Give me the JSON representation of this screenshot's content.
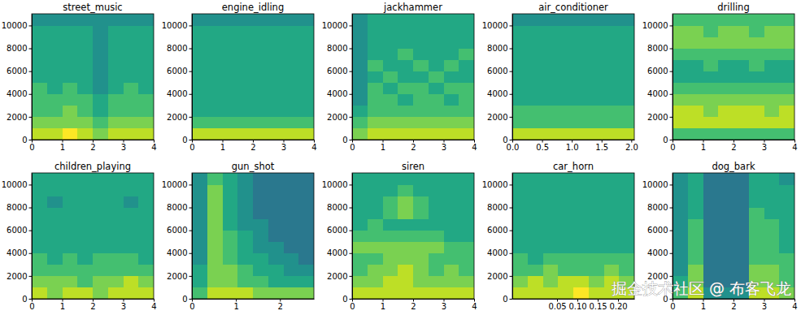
{
  "chart_data": [
    {
      "type": "heatmap",
      "title": "street_music",
      "xlim": [
        0,
        4
      ],
      "xticks": [
        0,
        1,
        2,
        3,
        4
      ],
      "ylim": [
        0,
        11025
      ],
      "yticks": [
        0,
        2000,
        4000,
        6000,
        8000,
        10000
      ],
      "zlim": [
        0,
        10
      ],
      "cells": [
        [
          9,
          9,
          10,
          9,
          8,
          9,
          9,
          9
        ],
        [
          8,
          8,
          8,
          8,
          7,
          8,
          8,
          8
        ],
        [
          7,
          7,
          8,
          7,
          6,
          7,
          7,
          7
        ],
        [
          7,
          7,
          7,
          7,
          6,
          7,
          7,
          7
        ],
        [
          7,
          6,
          7,
          6,
          5,
          6,
          7,
          6
        ],
        [
          6,
          6,
          6,
          6,
          5,
          6,
          6,
          6
        ],
        [
          6,
          6,
          6,
          6,
          5,
          6,
          6,
          6
        ],
        [
          6,
          6,
          6,
          6,
          5,
          6,
          6,
          6
        ],
        [
          6,
          6,
          6,
          6,
          5,
          6,
          6,
          6
        ],
        [
          6,
          6,
          6,
          6,
          5,
          6,
          6,
          6
        ],
        [
          5,
          5,
          5,
          5,
          5,
          5,
          5,
          5
        ]
      ]
    },
    {
      "type": "heatmap",
      "title": "engine_idling",
      "xlim": [
        0,
        4
      ],
      "xticks": [
        0,
        1,
        2,
        3,
        4
      ],
      "ylim": [
        0,
        11025
      ],
      "yticks": [
        0,
        2000,
        4000,
        6000,
        8000,
        10000
      ],
      "zlim": [
        0,
        10
      ],
      "cells": [
        [
          9,
          9,
          9,
          9,
          9,
          9,
          9,
          9
        ],
        [
          7,
          7,
          7,
          7,
          7,
          7,
          7,
          7
        ],
        [
          6,
          6,
          6,
          6,
          6,
          6,
          6,
          6
        ],
        [
          6,
          6,
          6,
          6,
          6,
          6,
          6,
          6
        ],
        [
          6,
          6,
          6,
          6,
          6,
          6,
          6,
          6
        ],
        [
          6,
          6,
          6,
          6,
          6,
          6,
          6,
          6
        ],
        [
          6,
          6,
          6,
          6,
          6,
          6,
          6,
          6
        ],
        [
          6,
          6,
          6,
          6,
          6,
          6,
          6,
          6
        ],
        [
          6,
          6,
          6,
          6,
          6,
          6,
          6,
          6
        ],
        [
          6,
          6,
          6,
          6,
          6,
          6,
          6,
          6
        ],
        [
          5,
          5,
          5,
          5,
          5,
          5,
          5,
          5
        ]
      ]
    },
    {
      "type": "heatmap",
      "title": "jackhammer",
      "xlim": [
        0,
        4
      ],
      "xticks": [
        0,
        1,
        2,
        3,
        4
      ],
      "ylim": [
        0,
        11025
      ],
      "yticks": [
        0,
        2000,
        4000,
        6000,
        8000,
        10000
      ],
      "zlim": [
        0,
        10
      ],
      "cells": [
        [
          8,
          9,
          9,
          9,
          9,
          9,
          9,
          9
        ],
        [
          7,
          8,
          8,
          8,
          8,
          8,
          8,
          8
        ],
        [
          6,
          7,
          7,
          7,
          7,
          7,
          7,
          7
        ],
        [
          5,
          7,
          7,
          6,
          7,
          7,
          6,
          7
        ],
        [
          5,
          7,
          6,
          7,
          7,
          6,
          7,
          7
        ],
        [
          5,
          6,
          7,
          6,
          6,
          7,
          6,
          6
        ],
        [
          5,
          7,
          6,
          6,
          7,
          6,
          7,
          6
        ],
        [
          5,
          6,
          6,
          7,
          6,
          6,
          6,
          7
        ],
        [
          5,
          6,
          6,
          6,
          6,
          6,
          6,
          6
        ],
        [
          5,
          6,
          6,
          6,
          6,
          6,
          6,
          6
        ],
        [
          5,
          6,
          6,
          6,
          6,
          6,
          6,
          6
        ]
      ]
    },
    {
      "type": "heatmap",
      "title": "air_conditioner",
      "xlim": [
        0,
        2.05
      ],
      "xticks": [
        {
          "value": 0,
          "label": "0.0"
        },
        {
          "value": 0.5,
          "label": "0.5"
        },
        {
          "value": 1,
          "label": "1.0"
        },
        {
          "value": 1.5,
          "label": "1.5"
        },
        {
          "value": 2,
          "label": "2.0"
        }
      ],
      "ylim": [
        0,
        11025
      ],
      "yticks": [
        0,
        2000,
        4000,
        6000,
        8000,
        10000
      ],
      "zlim": [
        0,
        10
      ],
      "cells": [
        [
          9,
          9,
          9,
          9,
          9,
          9,
          9,
          9
        ],
        [
          7,
          7,
          7,
          7,
          7,
          7,
          7,
          7
        ],
        [
          7,
          7,
          7,
          7,
          7,
          7,
          7,
          7
        ],
        [
          6,
          6,
          6,
          6,
          6,
          6,
          6,
          6
        ],
        [
          6,
          6,
          6,
          6,
          6,
          6,
          6,
          6
        ],
        [
          6,
          6,
          6,
          6,
          6,
          6,
          6,
          6
        ],
        [
          6,
          6,
          6,
          6,
          6,
          6,
          6,
          6
        ],
        [
          6,
          6,
          6,
          6,
          6,
          6,
          6,
          6
        ],
        [
          6,
          6,
          6,
          6,
          6,
          6,
          6,
          6
        ],
        [
          6,
          6,
          6,
          6,
          6,
          6,
          6,
          6
        ],
        [
          5,
          5,
          5,
          5,
          5,
          5,
          5,
          5
        ]
      ]
    },
    {
      "type": "heatmap",
      "title": "drilling",
      "xlim": [
        0,
        4
      ],
      "xticks": [
        0,
        1,
        2,
        3,
        4
      ],
      "ylim": [
        0,
        11025
      ],
      "yticks": [
        0,
        2000,
        4000,
        6000,
        8000,
        10000
      ],
      "zlim": [
        0,
        10
      ],
      "cells": [
        [
          7,
          7,
          7,
          7,
          7,
          7,
          7,
          7
        ],
        [
          9,
          9,
          9,
          9,
          9,
          9,
          9,
          9
        ],
        [
          9,
          9,
          8,
          9,
          9,
          9,
          8,
          9
        ],
        [
          8,
          8,
          8,
          8,
          8,
          8,
          8,
          8
        ],
        [
          7,
          7,
          7,
          7,
          7,
          7,
          7,
          7
        ],
        [
          6,
          6,
          6,
          6,
          6,
          6,
          6,
          6
        ],
        [
          6,
          6,
          7,
          6,
          6,
          7,
          6,
          6
        ],
        [
          7,
          7,
          7,
          7,
          7,
          7,
          7,
          7
        ],
        [
          8,
          8,
          8,
          8,
          8,
          8,
          8,
          8
        ],
        [
          8,
          8,
          7,
          8,
          8,
          7,
          8,
          8
        ],
        [
          7,
          7,
          7,
          7,
          7,
          7,
          7,
          7
        ]
      ]
    },
    {
      "type": "heatmap",
      "title": "children_playing",
      "xlim": [
        0,
        4
      ],
      "xticks": [
        0,
        1,
        2,
        3,
        4
      ],
      "ylim": [
        0,
        11025
      ],
      "yticks": [
        0,
        2000,
        4000,
        6000,
        8000,
        10000
      ],
      "zlim": [
        0,
        10
      ],
      "cells": [
        [
          9,
          8,
          9,
          9,
          8,
          9,
          9,
          9
        ],
        [
          8,
          8,
          8,
          7,
          8,
          8,
          9,
          8
        ],
        [
          7,
          7,
          7,
          7,
          7,
          7,
          7,
          7
        ],
        [
          7,
          6,
          7,
          6,
          7,
          7,
          7,
          6
        ],
        [
          6,
          6,
          6,
          6,
          6,
          6,
          6,
          6
        ],
        [
          6,
          6,
          6,
          6,
          6,
          6,
          6,
          6
        ],
        [
          6,
          6,
          6,
          6,
          6,
          6,
          6,
          6
        ],
        [
          6,
          6,
          6,
          6,
          6,
          6,
          6,
          6
        ],
        [
          6,
          5,
          6,
          6,
          6,
          6,
          5,
          6
        ],
        [
          6,
          6,
          6,
          6,
          6,
          6,
          6,
          6
        ],
        [
          6,
          6,
          6,
          6,
          6,
          6,
          6,
          6
        ]
      ]
    },
    {
      "type": "heatmap",
      "title": "gun_shot",
      "xlim": [
        0,
        2.77
      ],
      "xticks": [
        0,
        1,
        2
      ],
      "ylim": [
        0,
        11025
      ],
      "yticks": [
        0,
        2000,
        4000,
        6000,
        8000,
        10000
      ],
      "zlim": [
        0,
        10
      ],
      "cells": [
        [
          7,
          9,
          9,
          9,
          8,
          8,
          8,
          8
        ],
        [
          6,
          8,
          8,
          7,
          7,
          6,
          6,
          6
        ],
        [
          6,
          8,
          8,
          7,
          6,
          6,
          5,
          5
        ],
        [
          5,
          8,
          7,
          6,
          6,
          5,
          5,
          4
        ],
        [
          5,
          8,
          7,
          6,
          5,
          5,
          4,
          4
        ],
        [
          5,
          8,
          7,
          6,
          5,
          4,
          4,
          4
        ],
        [
          5,
          8,
          6,
          5,
          5,
          4,
          4,
          4
        ],
        [
          5,
          8,
          6,
          5,
          4,
          4,
          4,
          4
        ],
        [
          5,
          8,
          6,
          5,
          4,
          4,
          4,
          4
        ],
        [
          5,
          8,
          6,
          5,
          4,
          4,
          4,
          4
        ],
        [
          5,
          7,
          6,
          5,
          4,
          4,
          4,
          4
        ]
      ]
    },
    {
      "type": "heatmap",
      "title": "siren",
      "xlim": [
        0,
        4
      ],
      "xticks": [
        0,
        1,
        2,
        3,
        4
      ],
      "ylim": [
        0,
        11025
      ],
      "yticks": [
        0,
        2000,
        4000,
        6000,
        8000,
        10000
      ],
      "zlim": [
        0,
        10
      ],
      "cells": [
        [
          9,
          9,
          9,
          9,
          9,
          9,
          9,
          9
        ],
        [
          8,
          8,
          9,
          9,
          8,
          8,
          8,
          8
        ],
        [
          7,
          8,
          8,
          9,
          8,
          7,
          8,
          7
        ],
        [
          7,
          7,
          8,
          8,
          8,
          7,
          7,
          7
        ],
        [
          8,
          8,
          8,
          8,
          8,
          8,
          7,
          7
        ],
        [
          7,
          7,
          7,
          7,
          7,
          7,
          6,
          6
        ],
        [
          6,
          7,
          6,
          6,
          6,
          6,
          6,
          6
        ],
        [
          6,
          6,
          7,
          8,
          7,
          6,
          6,
          6
        ],
        [
          6,
          6,
          7,
          8,
          7,
          6,
          6,
          6
        ],
        [
          6,
          6,
          6,
          7,
          6,
          6,
          6,
          6
        ],
        [
          6,
          6,
          6,
          6,
          6,
          6,
          6,
          6
        ]
      ]
    },
    {
      "type": "heatmap",
      "title": "car_horn",
      "xlim": [
        -0.06,
        0.24
      ],
      "xticks": [
        {
          "value": 0.05,
          "label": "0.05"
        },
        {
          "value": 0.1,
          "label": "0.10"
        },
        {
          "value": 0.15,
          "label": "0.15"
        },
        {
          "value": 0.2,
          "label": "0.20"
        }
      ],
      "ylim": [
        0,
        11025
      ],
      "yticks": [
        0,
        2000,
        4000,
        6000,
        8000,
        10000
      ],
      "zlim": [
        0,
        10
      ],
      "cells": [
        [
          9,
          9,
          9,
          9,
          10,
          9,
          9,
          9
        ],
        [
          8,
          9,
          8,
          9,
          9,
          8,
          9,
          8
        ],
        [
          7,
          7,
          8,
          7,
          7,
          7,
          8,
          7
        ],
        [
          7,
          6,
          7,
          7,
          7,
          7,
          7,
          7
        ],
        [
          6,
          6,
          6,
          6,
          6,
          6,
          6,
          6
        ],
        [
          6,
          6,
          6,
          6,
          6,
          6,
          6,
          6
        ],
        [
          6,
          6,
          6,
          6,
          6,
          6,
          6,
          6
        ],
        [
          6,
          6,
          6,
          6,
          6,
          6,
          6,
          6
        ],
        [
          6,
          6,
          6,
          6,
          6,
          6,
          6,
          6
        ],
        [
          6,
          6,
          6,
          6,
          6,
          6,
          6,
          6
        ],
        [
          6,
          6,
          6,
          6,
          6,
          6,
          6,
          6
        ]
      ]
    },
    {
      "type": "heatmap",
      "title": "dog_bark",
      "xlim": [
        0,
        4
      ],
      "xticks": [
        0,
        1,
        2,
        3,
        4
      ],
      "ylim": [
        0,
        11025
      ],
      "yticks": [
        0,
        2000,
        4000,
        6000,
        8000,
        10000
      ],
      "zlim": [
        0,
        10
      ],
      "cells": [
        [
          7,
          9,
          5,
          5,
          5,
          9,
          9,
          8
        ],
        [
          6,
          8,
          4,
          4,
          4,
          8,
          8,
          7
        ],
        [
          5,
          8,
          4,
          4,
          4,
          8,
          8,
          7
        ],
        [
          5,
          7,
          4,
          4,
          4,
          7,
          7,
          7
        ],
        [
          5,
          7,
          4,
          4,
          4,
          7,
          7,
          6
        ],
        [
          5,
          7,
          4,
          4,
          4,
          7,
          7,
          6
        ],
        [
          5,
          7,
          4,
          4,
          4,
          7,
          7,
          6
        ],
        [
          5,
          6,
          4,
          4,
          4,
          7,
          6,
          6
        ],
        [
          5,
          6,
          4,
          4,
          4,
          6,
          6,
          6
        ],
        [
          5,
          6,
          4,
          4,
          4,
          6,
          6,
          6
        ],
        [
          5,
          6,
          4,
          4,
          4,
          6,
          6,
          5
        ]
      ]
    }
  ],
  "watermark": "掘金技术社区 @ 布客飞龙"
}
